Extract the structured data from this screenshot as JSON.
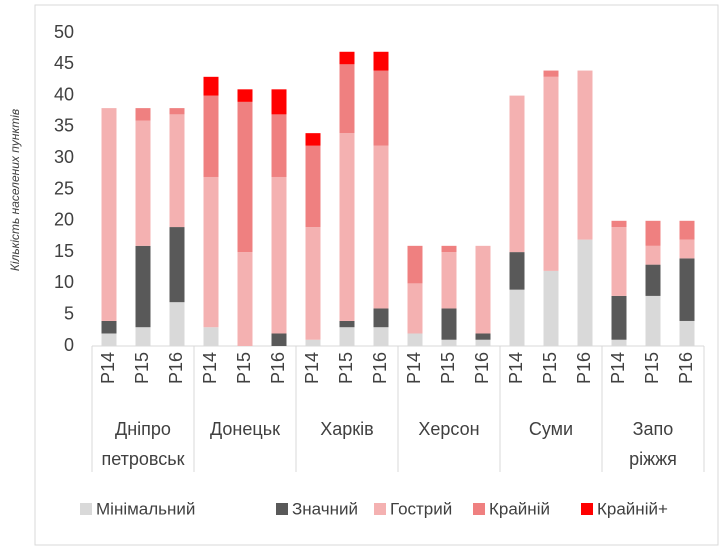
{
  "chart_data": {
    "type": "stacked_bar",
    "y_label": "Кількість населених пунктів",
    "groups": [
      {
        "lines": [
          "Дніпро",
          "петровськ"
        ],
        "categories": [
          "P14",
          "P15",
          "P16"
        ]
      },
      {
        "lines": [
          "Донецьк"
        ],
        "categories": [
          "P14",
          "P15",
          "P16"
        ]
      },
      {
        "lines": [
          "Харків"
        ],
        "categories": [
          "P14",
          "P15",
          "P16"
        ]
      },
      {
        "lines": [
          "Херсон"
        ],
        "categories": [
          "P14",
          "P15",
          "P16"
        ]
      },
      {
        "lines": [
          "Суми"
        ],
        "categories": [
          "P14",
          "P15",
          "P16"
        ]
      },
      {
        "lines": [
          "Запо",
          "ріжжя"
        ],
        "categories": [
          "P14",
          "P15",
          "P16"
        ]
      }
    ],
    "series": [
      {
        "name": "Мінімальний",
        "color": "#d9d9d9",
        "values": [
          2,
          3,
          7,
          3,
          0,
          0,
          1,
          3,
          3,
          2,
          1,
          1,
          9,
          12,
          17,
          1,
          8,
          4
        ]
      },
      {
        "name": "Значний",
        "color": "#595959",
        "values": [
          2,
          13,
          12,
          0,
          0,
          2,
          0,
          1,
          3,
          0,
          5,
          1,
          6,
          0,
          0,
          7,
          5,
          10
        ]
      },
      {
        "name": "Гострий",
        "color": "#f4b1b1",
        "values": [
          34,
          20,
          18,
          24,
          15,
          25,
          18,
          30,
          26,
          8,
          9,
          14,
          25,
          31,
          27,
          11,
          3,
          3
        ]
      },
      {
        "name": "Крайній",
        "color": "#ef8080",
        "values": [
          0,
          2,
          1,
          13,
          24,
          10,
          13,
          11,
          12,
          6,
          1,
          0,
          0,
          1,
          0,
          1,
          4,
          3
        ]
      },
      {
        "name": "Крайній+",
        "color": "#ff0000",
        "values": [
          0,
          0,
          0,
          3,
          2,
          4,
          2,
          2,
          3,
          0,
          0,
          0,
          0,
          0,
          0,
          0,
          0,
          0
        ]
      }
    ],
    "ylim": [
      0,
      50
    ],
    "yticks": [
      0,
      5,
      10,
      15,
      20,
      25,
      30,
      35,
      40,
      45,
      50
    ],
    "grid": false,
    "legend": "bottom"
  }
}
